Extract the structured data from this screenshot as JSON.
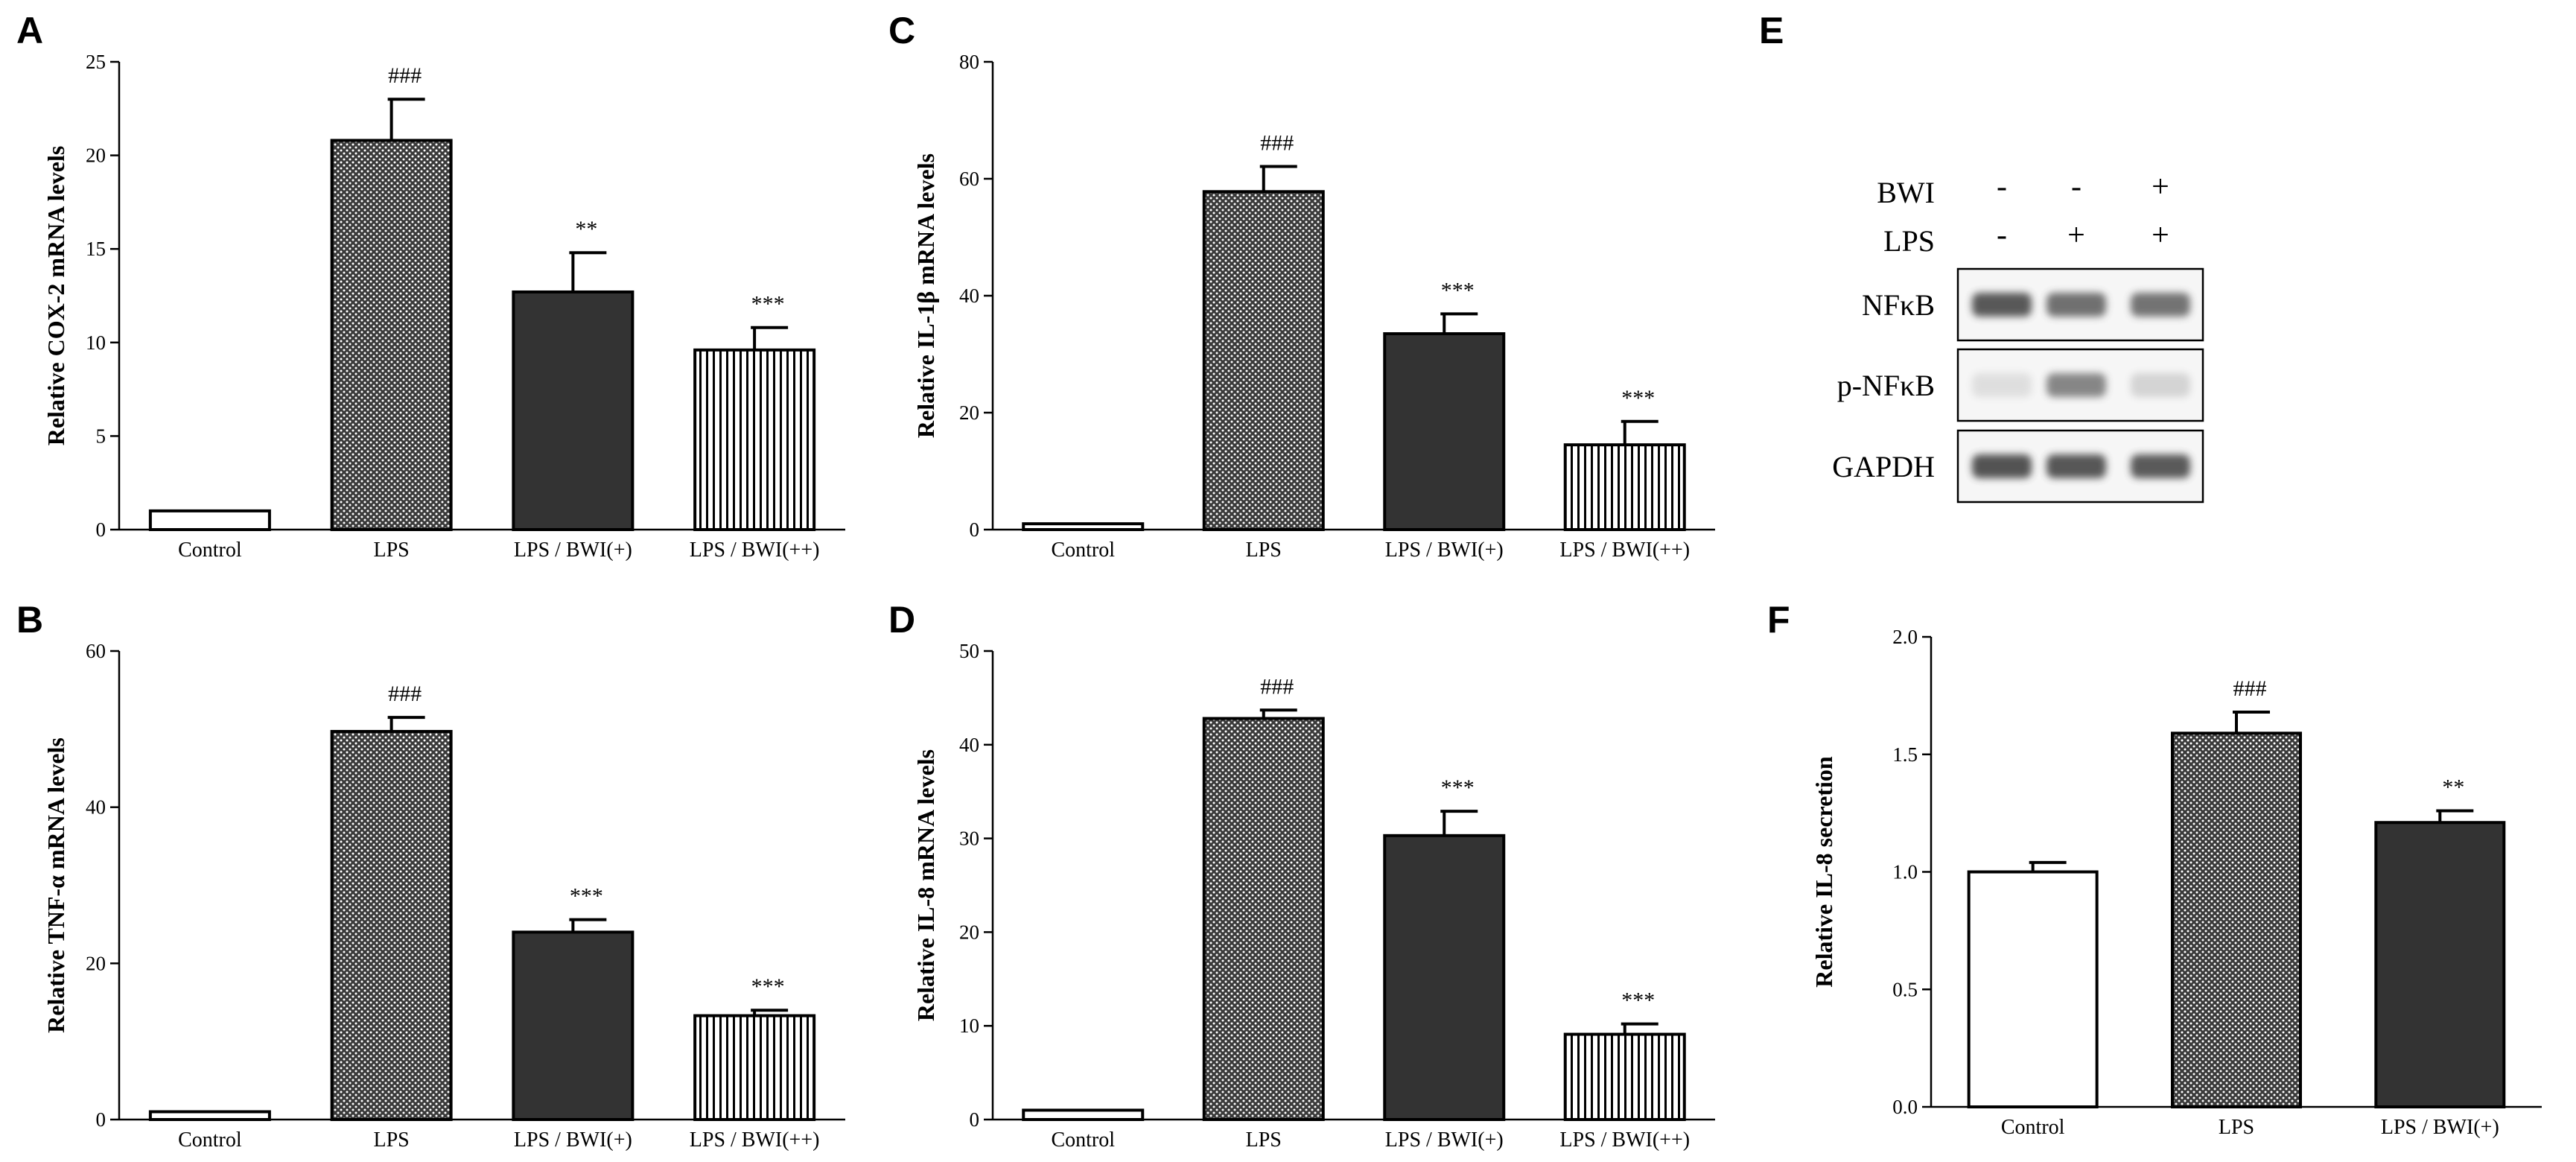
{
  "colors": {
    "ink": "#000000",
    "dark_fill": "#333333",
    "light_fill": "#ffffff",
    "dots_bg": "#3a3a3a",
    "dots_fg": "#ffffff",
    "band_dark": "#3c3c3c"
  },
  "chart_data": [
    {
      "id": "A",
      "type": "bar",
      "panel_label": "A",
      "ylabel": "Relative COX-2 mRNA levels",
      "ylim": [
        0,
        25
      ],
      "yticks": [
        0,
        5,
        10,
        15,
        20,
        25
      ],
      "categories": [
        "Control",
        "LPS",
        "LPS / BWI(+)",
        "LPS / BWI(++)"
      ],
      "values": [
        1.0,
        20.8,
        12.7,
        9.6
      ],
      "errors": [
        0,
        2.2,
        2.1,
        1.2
      ],
      "significance": [
        "",
        "###",
        "**",
        "***"
      ],
      "fills": [
        "white",
        "dots",
        "dark",
        "vlines"
      ]
    },
    {
      "id": "B",
      "type": "bar",
      "panel_label": "B",
      "ylabel": "Relative TNF-α mRNA levels",
      "ylim": [
        0,
        60
      ],
      "yticks": [
        0,
        20,
        40,
        60
      ],
      "categories": [
        "Control",
        "LPS",
        "LPS / BWI(+)",
        "LPS / BWI(++)"
      ],
      "values": [
        1.0,
        49.7,
        24.0,
        13.3
      ],
      "errors": [
        0,
        1.8,
        1.6,
        0.7
      ],
      "significance": [
        "",
        "###",
        "***",
        "***"
      ],
      "fills": [
        "white",
        "dots",
        "dark",
        "vlines"
      ]
    },
    {
      "id": "C",
      "type": "bar",
      "panel_label": "C",
      "ylabel": "Relative IL-1β mRNA levels",
      "ylim": [
        0,
        80
      ],
      "yticks": [
        0,
        20,
        40,
        60,
        80
      ],
      "categories": [
        "Control",
        "LPS",
        "LPS / BWI(+)",
        "LPS / BWI(++)"
      ],
      "values": [
        1.0,
        57.8,
        33.5,
        14.5
      ],
      "errors": [
        0,
        4.3,
        3.4,
        4.0
      ],
      "significance": [
        "",
        "###",
        "***",
        "***"
      ],
      "fills": [
        "white",
        "dots",
        "dark",
        "vlines"
      ]
    },
    {
      "id": "D",
      "type": "bar",
      "panel_label": "D",
      "ylabel": "Relative IL-8 mRNA levels",
      "ylim": [
        0,
        50
      ],
      "yticks": [
        0,
        10,
        20,
        30,
        40,
        50
      ],
      "categories": [
        "Control",
        "LPS",
        "LPS / BWI(+)",
        "LPS / BWI(++)"
      ],
      "values": [
        1.0,
        42.8,
        30.3,
        9.1
      ],
      "errors": [
        0,
        0.9,
        2.6,
        1.1
      ],
      "significance": [
        "",
        "###",
        "***",
        "***"
      ],
      "fills": [
        "white",
        "dots",
        "dark",
        "vlines"
      ]
    },
    {
      "id": "F",
      "type": "bar",
      "panel_label": "F",
      "ylabel": "Relative IL-8 secretion",
      "ylim": [
        0,
        2.0
      ],
      "yticks": [
        "0.0",
        "0.5",
        "1.0",
        "1.5",
        "2.0"
      ],
      "categories": [
        "Control",
        "LPS",
        "LPS / BWI(+)"
      ],
      "values": [
        1.0,
        1.59,
        1.21
      ],
      "errors": [
        0.04,
        0.09,
        0.05
      ],
      "significance": [
        "",
        "###",
        "**"
      ],
      "fills": [
        "white",
        "dots",
        "dark"
      ]
    }
  ],
  "blot": {
    "panel_label": "E",
    "treatments": [
      {
        "label": "BWI",
        "marks": [
          "-",
          "-",
          "+"
        ]
      },
      {
        "label": "LPS",
        "marks": [
          "-",
          "+",
          "+"
        ]
      }
    ],
    "rows": [
      {
        "label": "NFκB",
        "intensities": [
          0.85,
          0.72,
          0.7
        ]
      },
      {
        "label": "p-NFκB",
        "intensities": [
          0.12,
          0.6,
          0.18
        ]
      },
      {
        "label": "GAPDH",
        "intensities": [
          0.88,
          0.86,
          0.84
        ]
      }
    ]
  }
}
